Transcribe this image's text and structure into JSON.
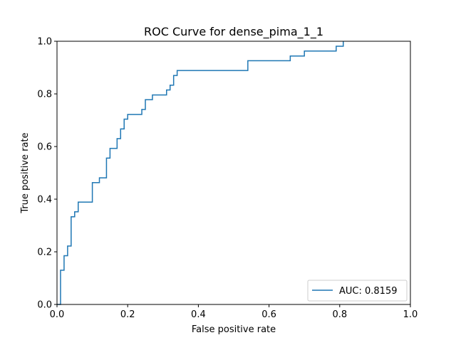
{
  "chart_data": {
    "type": "line",
    "title": "ROC Curve for dense_pima_1_1",
    "xlabel": "False positive rate",
    "ylabel": "True positive rate",
    "xlim": [
      0,
      1
    ],
    "ylim": [
      0,
      1
    ],
    "x_ticks": [
      "0.0",
      "0.2",
      "0.4",
      "0.6",
      "0.8",
      "1.0"
    ],
    "y_ticks": [
      "0.0",
      "0.2",
      "0.4",
      "0.6",
      "0.8",
      "1.0"
    ],
    "x_tick_values": [
      0,
      0.2,
      0.4,
      0.6,
      0.8,
      1.0
    ],
    "y_tick_values": [
      0,
      0.2,
      0.4,
      0.6,
      0.8,
      1.0
    ],
    "grid": false,
    "legend_position": "lower-right",
    "series": [
      {
        "name": "AUC: 0.8159",
        "color": "#1f77b4",
        "x": [
          0.0,
          0.01,
          0.01,
          0.02,
          0.02,
          0.03,
          0.03,
          0.04,
          0.04,
          0.05,
          0.05,
          0.06,
          0.06,
          0.1,
          0.1,
          0.12,
          0.12,
          0.14,
          0.14,
          0.15,
          0.15,
          0.17,
          0.17,
          0.18,
          0.18,
          0.19,
          0.19,
          0.2,
          0.2,
          0.24,
          0.24,
          0.25,
          0.25,
          0.27,
          0.27,
          0.31,
          0.31,
          0.32,
          0.32,
          0.33,
          0.33,
          0.34,
          0.34,
          0.54,
          0.54,
          0.66,
          0.66,
          0.7,
          0.7,
          0.79,
          0.79,
          0.81,
          0.81
        ],
        "y": [
          0.0,
          0.0,
          0.13,
          0.13,
          0.185,
          0.185,
          0.222,
          0.222,
          0.333,
          0.333,
          0.352,
          0.352,
          0.389,
          0.389,
          0.463,
          0.463,
          0.481,
          0.481,
          0.556,
          0.556,
          0.593,
          0.593,
          0.63,
          0.63,
          0.667,
          0.667,
          0.704,
          0.704,
          0.722,
          0.722,
          0.741,
          0.741,
          0.778,
          0.778,
          0.796,
          0.796,
          0.815,
          0.815,
          0.833,
          0.833,
          0.87,
          0.87,
          0.889,
          0.889,
          0.926,
          0.926,
          0.944,
          0.944,
          0.963,
          0.963,
          0.981,
          0.981,
          1.0
        ]
      }
    ]
  }
}
